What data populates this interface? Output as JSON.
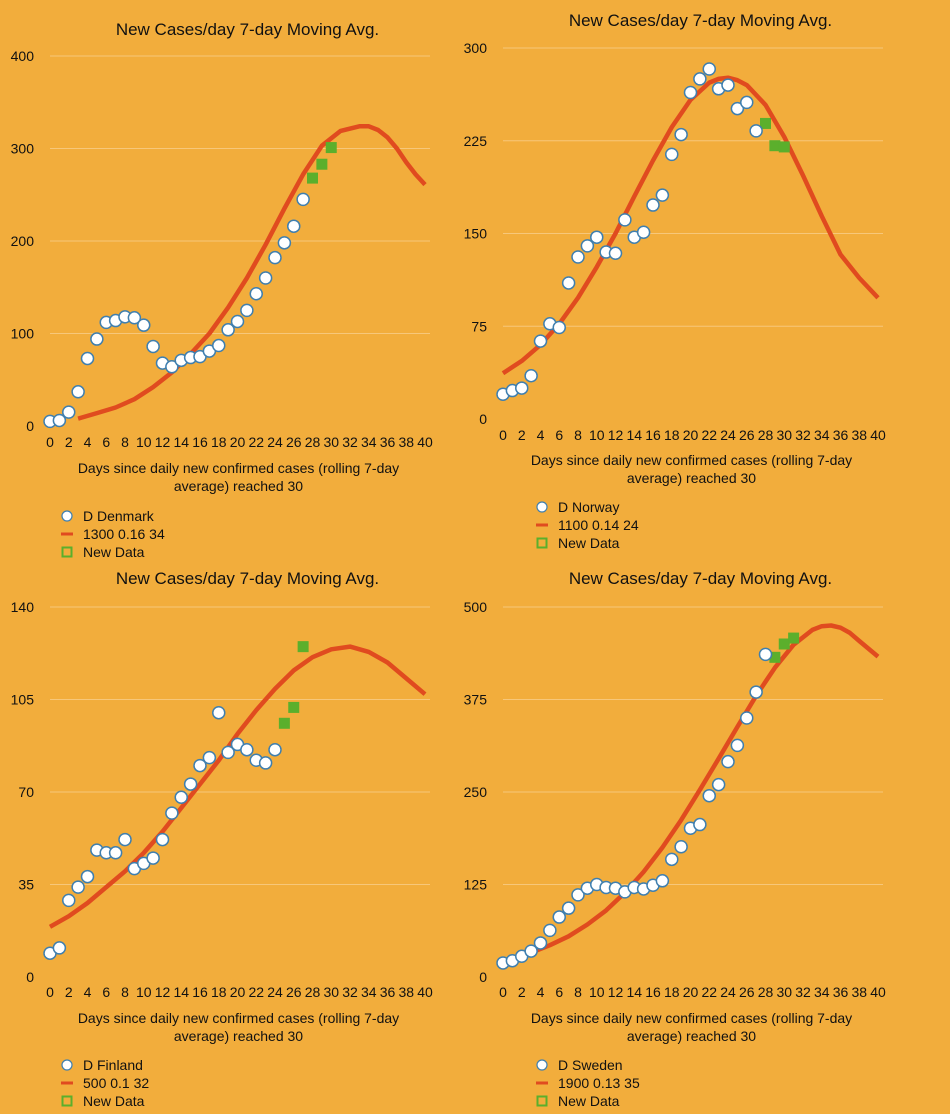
{
  "chart_data": [
    {
      "type": "scatter",
      "title": "New Cases/day 7-day Moving Avg.",
      "xlabel": [
        "Days since daily new confirmed cases (rolling 7-day",
        "average) reached 30"
      ],
      "xlim": [
        0,
        40
      ],
      "ylim": [
        0,
        400
      ],
      "xticks": [
        0,
        2,
        4,
        6,
        8,
        10,
        12,
        14,
        16,
        18,
        20,
        22,
        24,
        26,
        28,
        30,
        32,
        34,
        36,
        38,
        40
      ],
      "yticks": [
        0,
        100,
        200,
        300,
        400
      ],
      "grid": true,
      "legend_position": "bottom-left",
      "series": [
        {
          "name": "D Denmark",
          "kind": "points",
          "x": [
            0,
            1,
            2,
            3,
            4,
            5,
            6,
            7,
            8,
            9,
            10,
            11,
            12,
            13,
            14,
            15,
            16,
            17,
            18,
            19,
            20,
            21,
            22,
            23,
            24,
            25,
            26,
            27
          ],
          "y": [
            5,
            6,
            15,
            37,
            73,
            94,
            112,
            114,
            118,
            117,
            109,
            86,
            68,
            64,
            71,
            74,
            75,
            81,
            87,
            104,
            113,
            125,
            143,
            160,
            182,
            198,
            216,
            245
          ]
        },
        {
          "name": "1300 0.16 34",
          "kind": "curve",
          "x": [
            3,
            5,
            7,
            9,
            11,
            13,
            15,
            17,
            19,
            21,
            23,
            25,
            27,
            29,
            31,
            33,
            34,
            35,
            36,
            37,
            38,
            39,
            40
          ],
          "y": [
            8,
            14,
            20,
            29,
            42,
            58,
            78,
            100,
            128,
            160,
            196,
            235,
            272,
            303,
            319,
            324,
            324,
            320,
            312,
            300,
            285,
            272,
            261
          ]
        },
        {
          "name": "New Data",
          "kind": "squares",
          "x": [
            28,
            29,
            30
          ],
          "y": [
            268,
            283,
            301
          ]
        }
      ]
    },
    {
      "type": "scatter",
      "title": "New Cases/day 7-day Moving Avg.",
      "xlabel": [
        "Days since daily new confirmed cases (rolling 7-day",
        "average) reached 30"
      ],
      "xlim": [
        0,
        40
      ],
      "ylim": [
        0,
        300
      ],
      "xticks": [
        0,
        2,
        4,
        6,
        8,
        10,
        12,
        14,
        16,
        18,
        20,
        22,
        24,
        26,
        28,
        30,
        32,
        34,
        36,
        38,
        40
      ],
      "yticks": [
        0,
        75,
        150,
        225,
        300
      ],
      "grid": true,
      "legend_position": "bottom-left",
      "series": [
        {
          "name": "D Norway",
          "kind": "points",
          "x": [
            0,
            1,
            2,
            3,
            4,
            5,
            6,
            7,
            8,
            9,
            10,
            11,
            12,
            13,
            14,
            15,
            16,
            17,
            18,
            19,
            20,
            21,
            22,
            23,
            24,
            25,
            26,
            27
          ],
          "y": [
            20,
            23,
            25,
            35,
            63,
            77,
            74,
            110,
            131,
            140,
            147,
            135,
            134,
            161,
            147,
            151,
            173,
            181,
            214,
            230,
            264,
            275,
            283,
            267,
            270,
            251,
            256,
            233
          ]
        },
        {
          "name": "1100 0.14 24",
          "kind": "curve",
          "x": [
            0,
            2,
            4,
            6,
            8,
            10,
            12,
            14,
            16,
            18,
            20,
            22,
            23,
            24,
            25,
            26,
            28,
            30,
            32,
            34,
            36,
            38,
            40
          ],
          "y": [
            37,
            47,
            60,
            77,
            98,
            123,
            150,
            180,
            209,
            236,
            258,
            272,
            275,
            276,
            274,
            270,
            254,
            228,
            197,
            164,
            133,
            114,
            98
          ]
        },
        {
          "name": "New Data",
          "kind": "squares",
          "x": [
            28,
            29,
            30
          ],
          "y": [
            239,
            221,
            220
          ]
        }
      ]
    },
    {
      "type": "scatter",
      "title": "New Cases/day 7-day Moving Avg.",
      "xlabel": [
        "Days since daily new confirmed cases (rolling 7-day",
        "average) reached 30"
      ],
      "xlim": [
        0,
        40
      ],
      "ylim": [
        0,
        140
      ],
      "xticks": [
        0,
        2,
        4,
        6,
        8,
        10,
        12,
        14,
        16,
        18,
        20,
        22,
        24,
        26,
        28,
        30,
        32,
        34,
        36,
        38,
        40
      ],
      "yticks": [
        0,
        35,
        70,
        105,
        140
      ],
      "grid": true,
      "legend_position": "bottom-left",
      "series": [
        {
          "name": "D Finland",
          "kind": "points",
          "x": [
            0,
            1,
            2,
            3,
            4,
            5,
            6,
            7,
            8,
            9,
            10,
            11,
            12,
            13,
            14,
            15,
            16,
            17,
            18,
            19,
            20,
            21,
            22,
            23,
            24
          ],
          "y": [
            9,
            11,
            29,
            34,
            38,
            48,
            47,
            47,
            52,
            41,
            43,
            45,
            52,
            62,
            68,
            73,
            80,
            83,
            100,
            85,
            88,
            86,
            82,
            81,
            86
          ]
        },
        {
          "name": "500 0.1 32",
          "kind": "curve",
          "x": [
            0,
            2,
            4,
            6,
            8,
            10,
            12,
            14,
            16,
            18,
            20,
            22,
            24,
            26,
            28,
            30,
            32,
            34,
            36,
            38,
            40
          ],
          "y": [
            19,
            23,
            28,
            34,
            40,
            47,
            55,
            64,
            73,
            82,
            92,
            101,
            109,
            116,
            121,
            124,
            125,
            123,
            119,
            113,
            107
          ]
        },
        {
          "name": "New Data",
          "kind": "squares",
          "x": [
            25,
            26,
            27
          ],
          "y": [
            96,
            102,
            125
          ]
        }
      ]
    },
    {
      "type": "scatter",
      "title": "New Cases/day 7-day Moving Avg.",
      "xlabel": [
        "Days since daily new confirmed cases (rolling 7-day",
        "average) reached 30"
      ],
      "xlim": [
        0,
        40
      ],
      "ylim": [
        0,
        500
      ],
      "xticks": [
        0,
        2,
        4,
        6,
        8,
        10,
        12,
        14,
        16,
        18,
        20,
        22,
        24,
        26,
        28,
        30,
        32,
        34,
        36,
        38,
        40
      ],
      "yticks": [
        0,
        125,
        250,
        375,
        500
      ],
      "grid": true,
      "legend_position": "bottom-left",
      "series": [
        {
          "name": "D Sweden",
          "kind": "points",
          "x": [
            0,
            1,
            2,
            3,
            4,
            5,
            6,
            7,
            8,
            9,
            10,
            11,
            12,
            13,
            14,
            15,
            16,
            17,
            18,
            19,
            20,
            21,
            22,
            23,
            24,
            25,
            26,
            27,
            28
          ],
          "y": [
            19,
            22,
            28,
            35,
            46,
            63,
            81,
            93,
            111,
            120,
            125,
            121,
            120,
            115,
            121,
            119,
            124,
            130,
            159,
            176,
            201,
            206,
            245,
            260,
            291,
            313,
            350,
            385,
            436
          ]
        },
        {
          "name": "1900 0.13 35",
          "kind": "curve",
          "x": [
            3,
            5,
            7,
            9,
            11,
            13,
            15,
            17,
            19,
            21,
            23,
            25,
            27,
            29,
            31,
            33,
            34,
            35,
            36,
            37,
            38,
            40
          ],
          "y": [
            33,
            43,
            55,
            71,
            90,
            114,
            142,
            175,
            212,
            253,
            295,
            338,
            380,
            418,
            449,
            469,
            474,
            475,
            472,
            465,
            454,
            433
          ]
        },
        {
          "name": "New Data",
          "kind": "squares",
          "x": [
            29,
            30,
            31
          ],
          "y": [
            432,
            450,
            458
          ]
        }
      ]
    }
  ],
  "colors": {
    "background": "#F2AD3C",
    "gridline": "#F7C77A",
    "points_fill": "#FFFFFF",
    "points_stroke": "#3F7FAF",
    "curve": "#E04B1F",
    "new_data": "#5BAF2C"
  }
}
